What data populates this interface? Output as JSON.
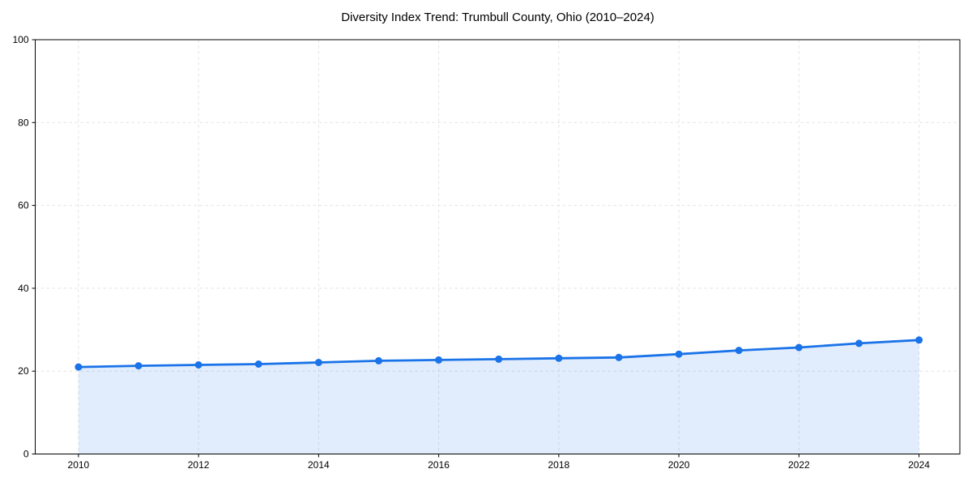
{
  "page": {
    "background": "#ffffff"
  },
  "chart_data": {
    "type": "line",
    "title": "Diversity Index Trend: Trumbull County, Ohio (2010–2024)",
    "xlabel": "",
    "ylabel": "",
    "x": [
      2010,
      2011,
      2012,
      2013,
      2014,
      2015,
      2016,
      2017,
      2018,
      2019,
      2020,
      2021,
      2022,
      2023,
      2024
    ],
    "series": [
      {
        "name": "Diversity Index",
        "values": [
          21.0,
          21.3,
          21.5,
          21.7,
          22.1,
          22.5,
          22.7,
          22.9,
          23.1,
          23.3,
          24.1,
          25.0,
          25.7,
          26.7,
          27.5
        ]
      }
    ],
    "xticks": [
      2010,
      2012,
      2014,
      2016,
      2018,
      2020,
      2022,
      2024
    ],
    "yticks": [
      0,
      20,
      40,
      60,
      80,
      100
    ],
    "xlim": [
      2009.28,
      2024.68
    ],
    "ylim": [
      0,
      100
    ],
    "grid": true,
    "grid_style": "dashed",
    "legend": "none",
    "area_fill": true,
    "marker": "circle",
    "colors": {
      "line": "#1a73e8",
      "fill": "rgba(26,115,232,0.13)",
      "grid": "#e4e4e4",
      "axis": "#000000",
      "text": "#000000",
      "background": "#ffffff"
    }
  }
}
